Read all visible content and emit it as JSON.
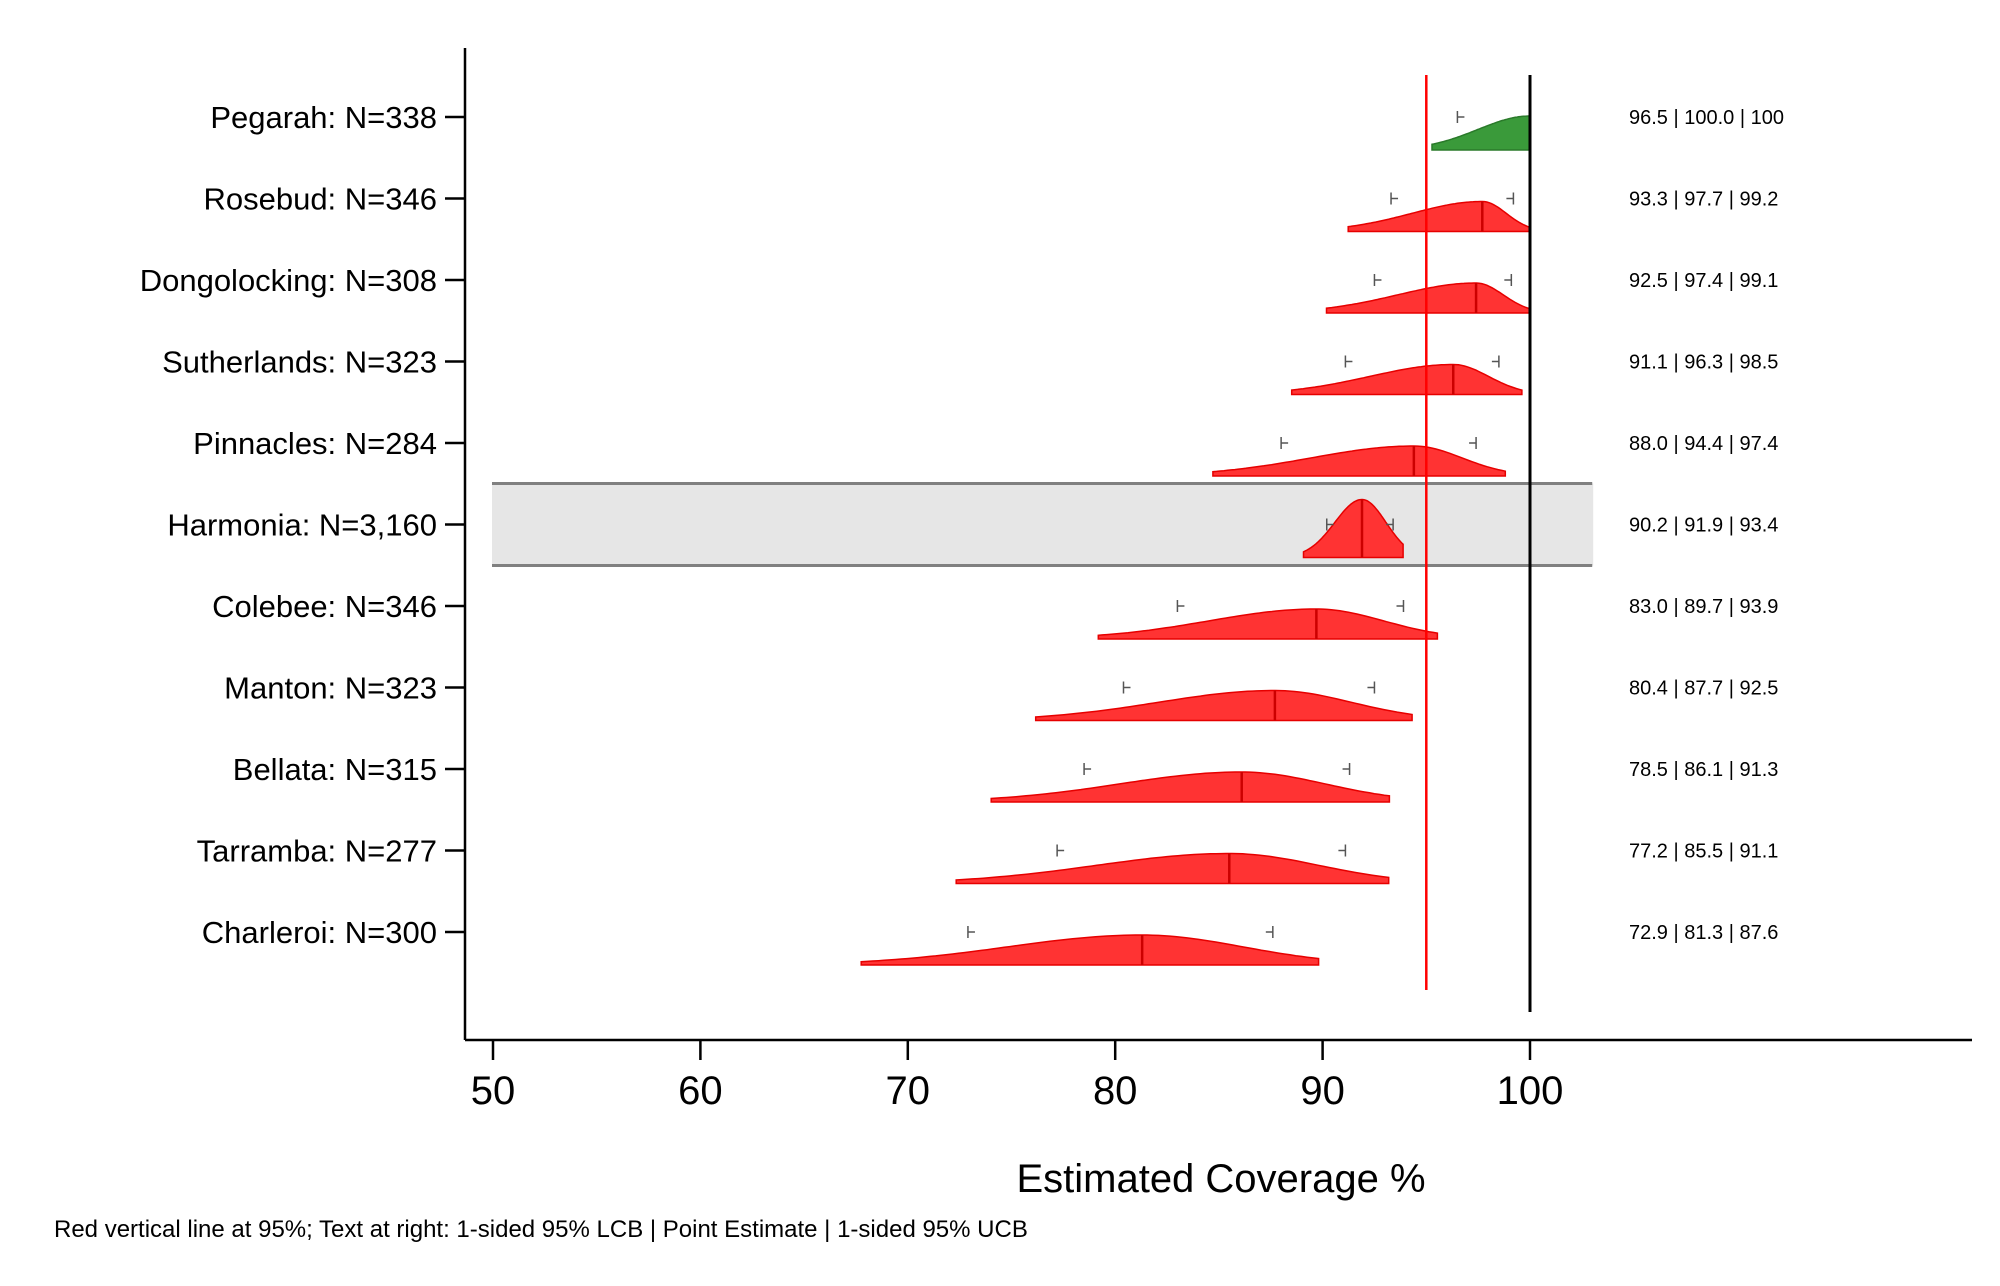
{
  "chart_data": {
    "type": "area",
    "xlabel": "Estimated Coverage %",
    "footnote": "Red vertical line at 95%; Text at right: 1-sided 95% LCB | Point Estimate | 1-sided 95% UCB",
    "xlim": [
      50,
      100
    ],
    "xticks": [
      "50",
      "60",
      "70",
      "80",
      "90",
      "100"
    ],
    "reference_line": 95,
    "reference_line_label": "95%",
    "colors": {
      "below_threshold": "#ff3333",
      "above_threshold": "#3a9a3a",
      "reference_line": "#ff0000",
      "highlight_band": "#e6e6e6"
    },
    "rows": [
      {
        "label": "Pegarah: N=338",
        "lcb": 96.5,
        "point": 100.0,
        "ucb": 100,
        "text": "96.5 | 100.0 | 100",
        "color": "green",
        "highlight": false
      },
      {
        "label": "Rosebud: N=346",
        "lcb": 93.3,
        "point": 97.7,
        "ucb": 99.2,
        "text": "93.3 | 97.7 | 99.2",
        "color": "red",
        "highlight": false
      },
      {
        "label": "Dongolocking: N=308",
        "lcb": 92.5,
        "point": 97.4,
        "ucb": 99.1,
        "text": "92.5 | 97.4 | 99.1",
        "color": "red",
        "highlight": false
      },
      {
        "label": "Sutherlands: N=323",
        "lcb": 91.1,
        "point": 96.3,
        "ucb": 98.5,
        "text": "91.1 | 96.3 | 98.5",
        "color": "red",
        "highlight": false
      },
      {
        "label": "Pinnacles: N=284",
        "lcb": 88.0,
        "point": 94.4,
        "ucb": 97.4,
        "text": "88.0 | 94.4 | 97.4",
        "color": "red",
        "highlight": false
      },
      {
        "label": "Harmonia: N=3,160",
        "lcb": 90.2,
        "point": 91.9,
        "ucb": 93.4,
        "text": "90.2 | 91.9 | 93.4",
        "color": "red",
        "highlight": true
      },
      {
        "label": "Colebee: N=346",
        "lcb": 83.0,
        "point": 89.7,
        "ucb": 93.9,
        "text": "83.0 | 89.7 | 93.9",
        "color": "red",
        "highlight": false
      },
      {
        "label": "Manton: N=323",
        "lcb": 80.4,
        "point": 87.7,
        "ucb": 92.5,
        "text": "80.4 | 87.7 | 92.5",
        "color": "red",
        "highlight": false
      },
      {
        "label": "Bellata: N=315",
        "lcb": 78.5,
        "point": 86.1,
        "ucb": 91.3,
        "text": "78.5 | 86.1 | 91.3",
        "color": "red",
        "highlight": false
      },
      {
        "label": "Tarramba: N=277",
        "lcb": 77.2,
        "point": 85.5,
        "ucb": 91.1,
        "text": "77.2 | 85.5 | 91.1",
        "color": "red",
        "highlight": false
      },
      {
        "label": "Charleroi: N=300",
        "lcb": 72.9,
        "point": 81.3,
        "ucb": 87.6,
        "text": "72.9 | 81.3 | 87.6",
        "color": "red",
        "highlight": false
      }
    ]
  }
}
